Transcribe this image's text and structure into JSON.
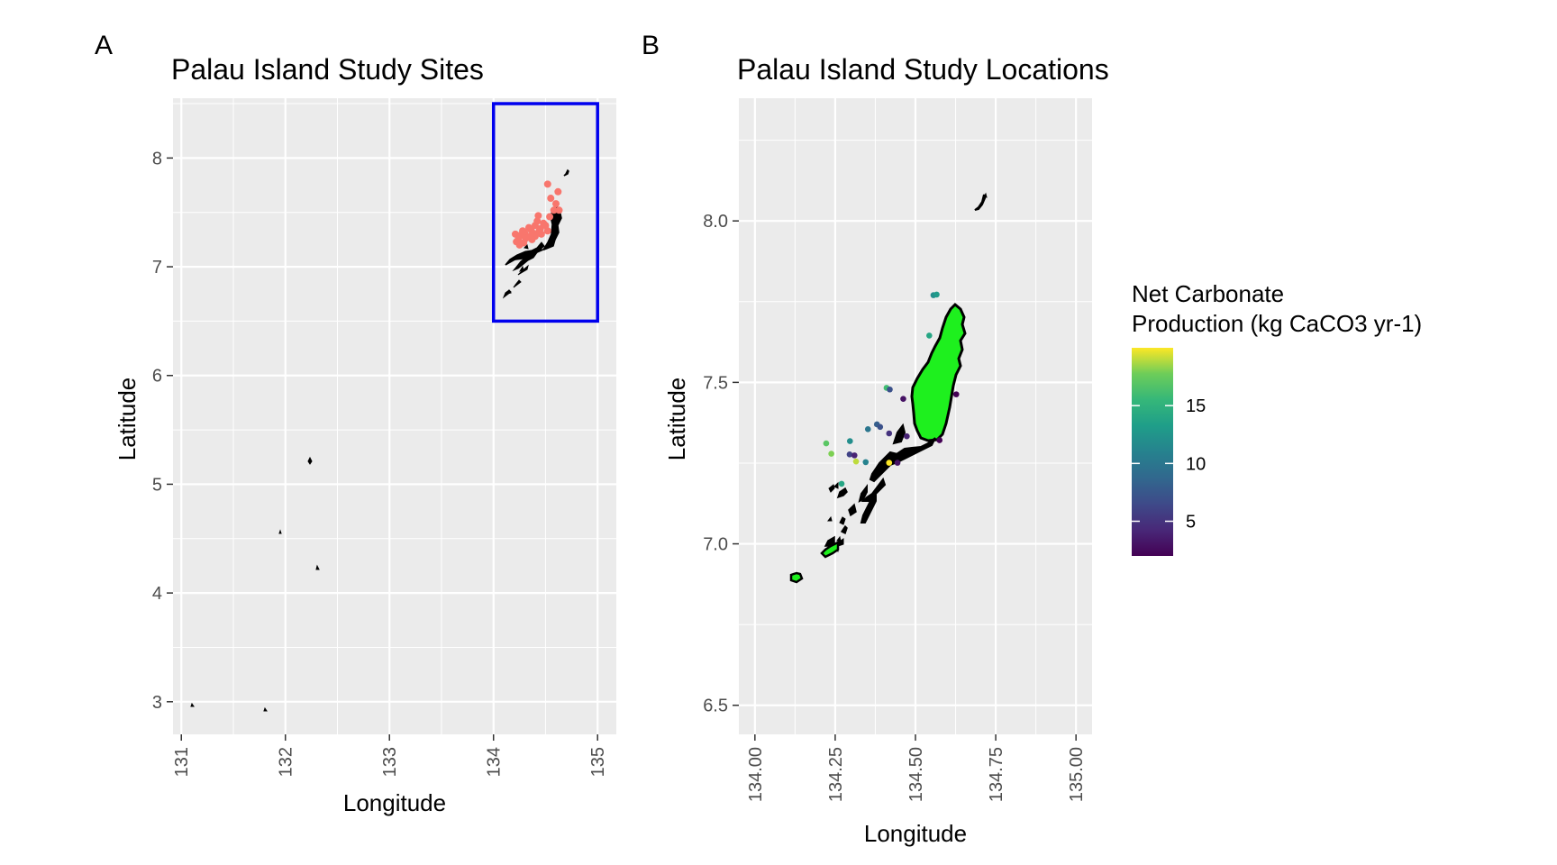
{
  "panels": [
    {
      "letter": "A",
      "title": "Palau Island Study Sites",
      "xlabel": "Longitude",
      "ylabel": "Latitude",
      "x_ticks": [
        "131",
        "132",
        "133",
        "134",
        "135"
      ],
      "y_ticks": [
        "3",
        "4",
        "5",
        "6",
        "7",
        "8"
      ]
    },
    {
      "letter": "B",
      "title": "Palau Island Study Locations",
      "xlabel": "Longitude",
      "ylabel": "Latitude",
      "x_ticks": [
        "134.00",
        "134.25",
        "134.50",
        "134.75",
        "135.00"
      ],
      "y_ticks": [
        "6.5",
        "7.0",
        "7.5",
        "8.0"
      ]
    }
  ],
  "legend": {
    "title_line1": "Net Carbonate",
    "title_line2": "Production (kg CaCO3 yr-1)",
    "ticks": [
      "15",
      "10",
      "5"
    ]
  },
  "chart_data": [
    {
      "type": "scatter",
      "title": "Palau Island Study Sites",
      "xlabel": "Longitude",
      "ylabel": "Latitude",
      "xlim": [
        130.92,
        135.18
      ],
      "ylim": [
        2.7,
        8.55
      ],
      "grid": true,
      "point_color": "#F8766D",
      "highlight_box": {
        "xmin": 134.0,
        "xmax": 135.0,
        "ymin": 6.5,
        "ymax": 8.5,
        "color": "#0000EE"
      },
      "points": [
        [
          134.52,
          7.76
        ],
        [
          134.62,
          7.69
        ],
        [
          134.55,
          7.63
        ],
        [
          134.6,
          7.58
        ],
        [
          134.63,
          7.52
        ],
        [
          134.43,
          7.47
        ],
        [
          134.54,
          7.46
        ],
        [
          134.48,
          7.4
        ],
        [
          134.4,
          7.38
        ],
        [
          134.34,
          7.36
        ],
        [
          134.36,
          7.34
        ],
        [
          134.44,
          7.33
        ],
        [
          134.52,
          7.33
        ],
        [
          134.3,
          7.31
        ],
        [
          134.38,
          7.31
        ],
        [
          134.21,
          7.3
        ],
        [
          134.26,
          7.29
        ],
        [
          134.4,
          7.28
        ],
        [
          134.33,
          7.27
        ],
        [
          134.24,
          7.26
        ],
        [
          134.37,
          7.25
        ],
        [
          134.22,
          7.23
        ],
        [
          134.29,
          7.22
        ],
        [
          134.25,
          7.2
        ],
        [
          134.45,
          7.35
        ],
        [
          134.46,
          7.3
        ],
        [
          134.5,
          7.38
        ],
        [
          134.42,
          7.42
        ],
        [
          134.58,
          7.52
        ],
        [
          134.28,
          7.33
        ],
        [
          134.35,
          7.28
        ],
        [
          134.31,
          7.26
        ]
      ]
    },
    {
      "type": "scatter",
      "title": "Palau Island Study Locations",
      "xlabel": "Longitude",
      "ylabel": "Latitude",
      "xlim": [
        133.95,
        135.05
      ],
      "ylim": [
        6.41,
        8.38
      ],
      "grid": true,
      "color_scale": {
        "name": "viridis",
        "min": 2,
        "max": 20,
        "legend_ticks": [
          5,
          10,
          15
        ]
      },
      "points": [
        {
          "x": 134.556,
          "y": 7.77,
          "value": 12
        },
        {
          "x": 134.566,
          "y": 7.772,
          "value": 13
        },
        {
          "x": 134.543,
          "y": 7.645,
          "value": 14
        },
        {
          "x": 134.41,
          "y": 7.483,
          "value": 16
        },
        {
          "x": 134.42,
          "y": 7.478,
          "value": 7
        },
        {
          "x": 134.462,
          "y": 7.449,
          "value": 3
        },
        {
          "x": 134.627,
          "y": 7.463,
          "value": 2
        },
        {
          "x": 134.38,
          "y": 7.37,
          "value": 8
        },
        {
          "x": 134.39,
          "y": 7.362,
          "value": 7
        },
        {
          "x": 134.352,
          "y": 7.355,
          "value": 10
        },
        {
          "x": 134.418,
          "y": 7.342,
          "value": 5
        },
        {
          "x": 134.296,
          "y": 7.318,
          "value": 12
        },
        {
          "x": 134.222,
          "y": 7.311,
          "value": 17
        },
        {
          "x": 134.473,
          "y": 7.333,
          "value": 4
        },
        {
          "x": 134.575,
          "y": 7.321,
          "value": 2
        },
        {
          "x": 134.238,
          "y": 7.279,
          "value": 18
        },
        {
          "x": 134.295,
          "y": 7.277,
          "value": 6
        },
        {
          "x": 134.31,
          "y": 7.274,
          "value": 4
        },
        {
          "x": 134.315,
          "y": 7.255,
          "value": 19
        },
        {
          "x": 134.345,
          "y": 7.253,
          "value": 11
        },
        {
          "x": 134.418,
          "y": 7.251,
          "value": 20
        },
        {
          "x": 134.444,
          "y": 7.251,
          "value": 3
        },
        {
          "x": 134.27,
          "y": 7.186,
          "value": 14
        }
      ]
    }
  ]
}
